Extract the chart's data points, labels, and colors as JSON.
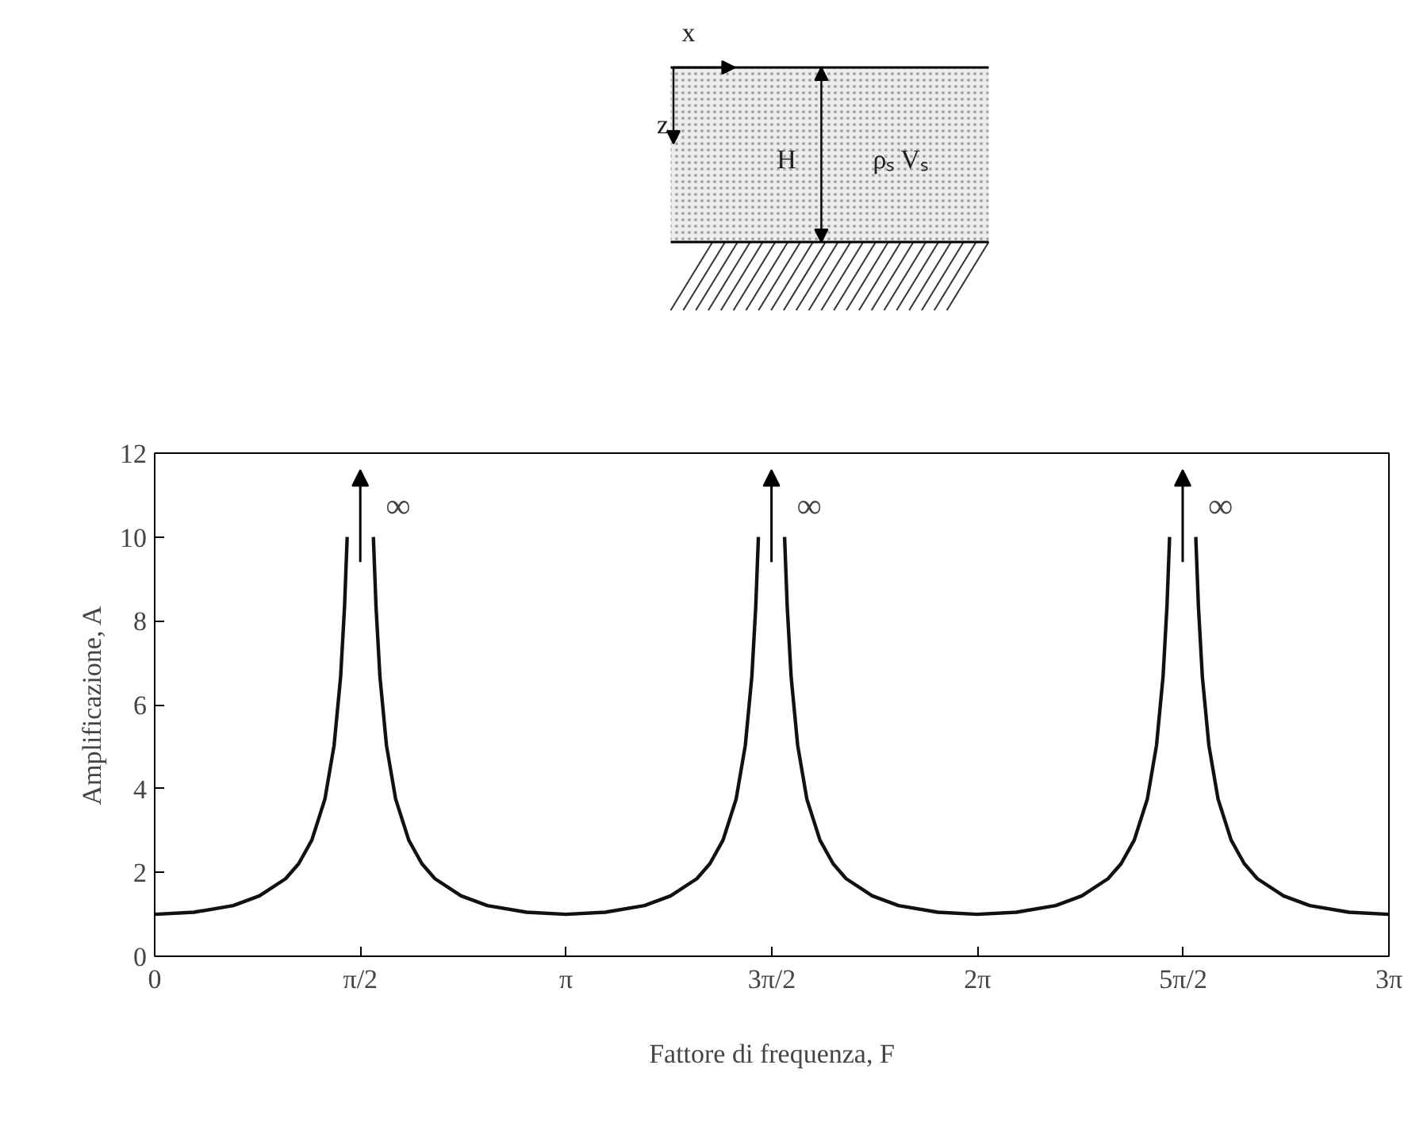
{
  "chart_data": {
    "type": "line",
    "xlabel": "Fattore di frequenza, F",
    "ylabel": "Amplificazione, A",
    "xlim": [
      0,
      9.4248
    ],
    "ylim": [
      0,
      12
    ],
    "xticks": [
      0,
      {
        "value": 1.5708,
        "label": "π/2"
      },
      {
        "value": 3.1416,
        "label": "π"
      },
      {
        "value": 4.7124,
        "label": "3π/2"
      },
      {
        "value": 6.2832,
        "label": "2π"
      },
      {
        "value": 7.854,
        "label": "5π/2"
      },
      {
        "value": 9.4248,
        "label": "3π"
      }
    ],
    "yticks": [
      0,
      2,
      4,
      6,
      8,
      10,
      12
    ],
    "series": [
      {
        "color": "#111111",
        "x": [
          0,
          0.3,
          0.6,
          0.8,
          1.0,
          1.1,
          1.2,
          1.3,
          1.37,
          1.42,
          1.45,
          1.47,
          1.57,
          1.67,
          1.69,
          1.72,
          1.77,
          1.84,
          1.94,
          2.04,
          2.14,
          2.34,
          2.54,
          2.84,
          3.14,
          3.44,
          3.74,
          3.94,
          4.14,
          4.24,
          4.34,
          4.44,
          4.51,
          4.56,
          4.59,
          4.61,
          4.71,
          4.81,
          4.83,
          4.86,
          4.91,
          4.98,
          5.08,
          5.18,
          5.28,
          5.48,
          5.68,
          5.98,
          6.28,
          6.58,
          6.88,
          7.08,
          7.28,
          7.38,
          7.48,
          7.58,
          7.65,
          7.7,
          7.73,
          7.75,
          7.85,
          7.95,
          7.97,
          8.0,
          8.05,
          8.12,
          8.22,
          8.32,
          8.42,
          8.62,
          8.82,
          9.12,
          9.42
        ],
        "values": [
          1,
          1.05,
          1.21,
          1.44,
          1.85,
          2.21,
          2.77,
          3.75,
          5.03,
          6.67,
          8.35,
          10,
          null,
          10,
          8.35,
          6.67,
          5.03,
          3.75,
          2.77,
          2.21,
          1.85,
          1.44,
          1.21,
          1.05,
          1,
          1.05,
          1.21,
          1.44,
          1.85,
          2.21,
          2.77,
          3.75,
          5.03,
          6.67,
          8.35,
          10,
          null,
          10,
          8.35,
          6.67,
          5.03,
          3.75,
          2.77,
          2.21,
          1.85,
          1.44,
          1.21,
          1.05,
          1,
          1.05,
          1.21,
          1.44,
          1.85,
          2.21,
          2.77,
          3.75,
          5.03,
          6.67,
          8.35,
          10,
          null,
          10,
          8.35,
          6.67,
          5.03,
          3.75,
          2.77,
          2.21,
          1.85,
          1.44,
          1.21,
          1.05,
          1
        ]
      }
    ],
    "annotations": [
      "∞",
      "∞",
      "∞",
      "x",
      "z",
      "H",
      "ρₛ Vₛ"
    ]
  }
}
